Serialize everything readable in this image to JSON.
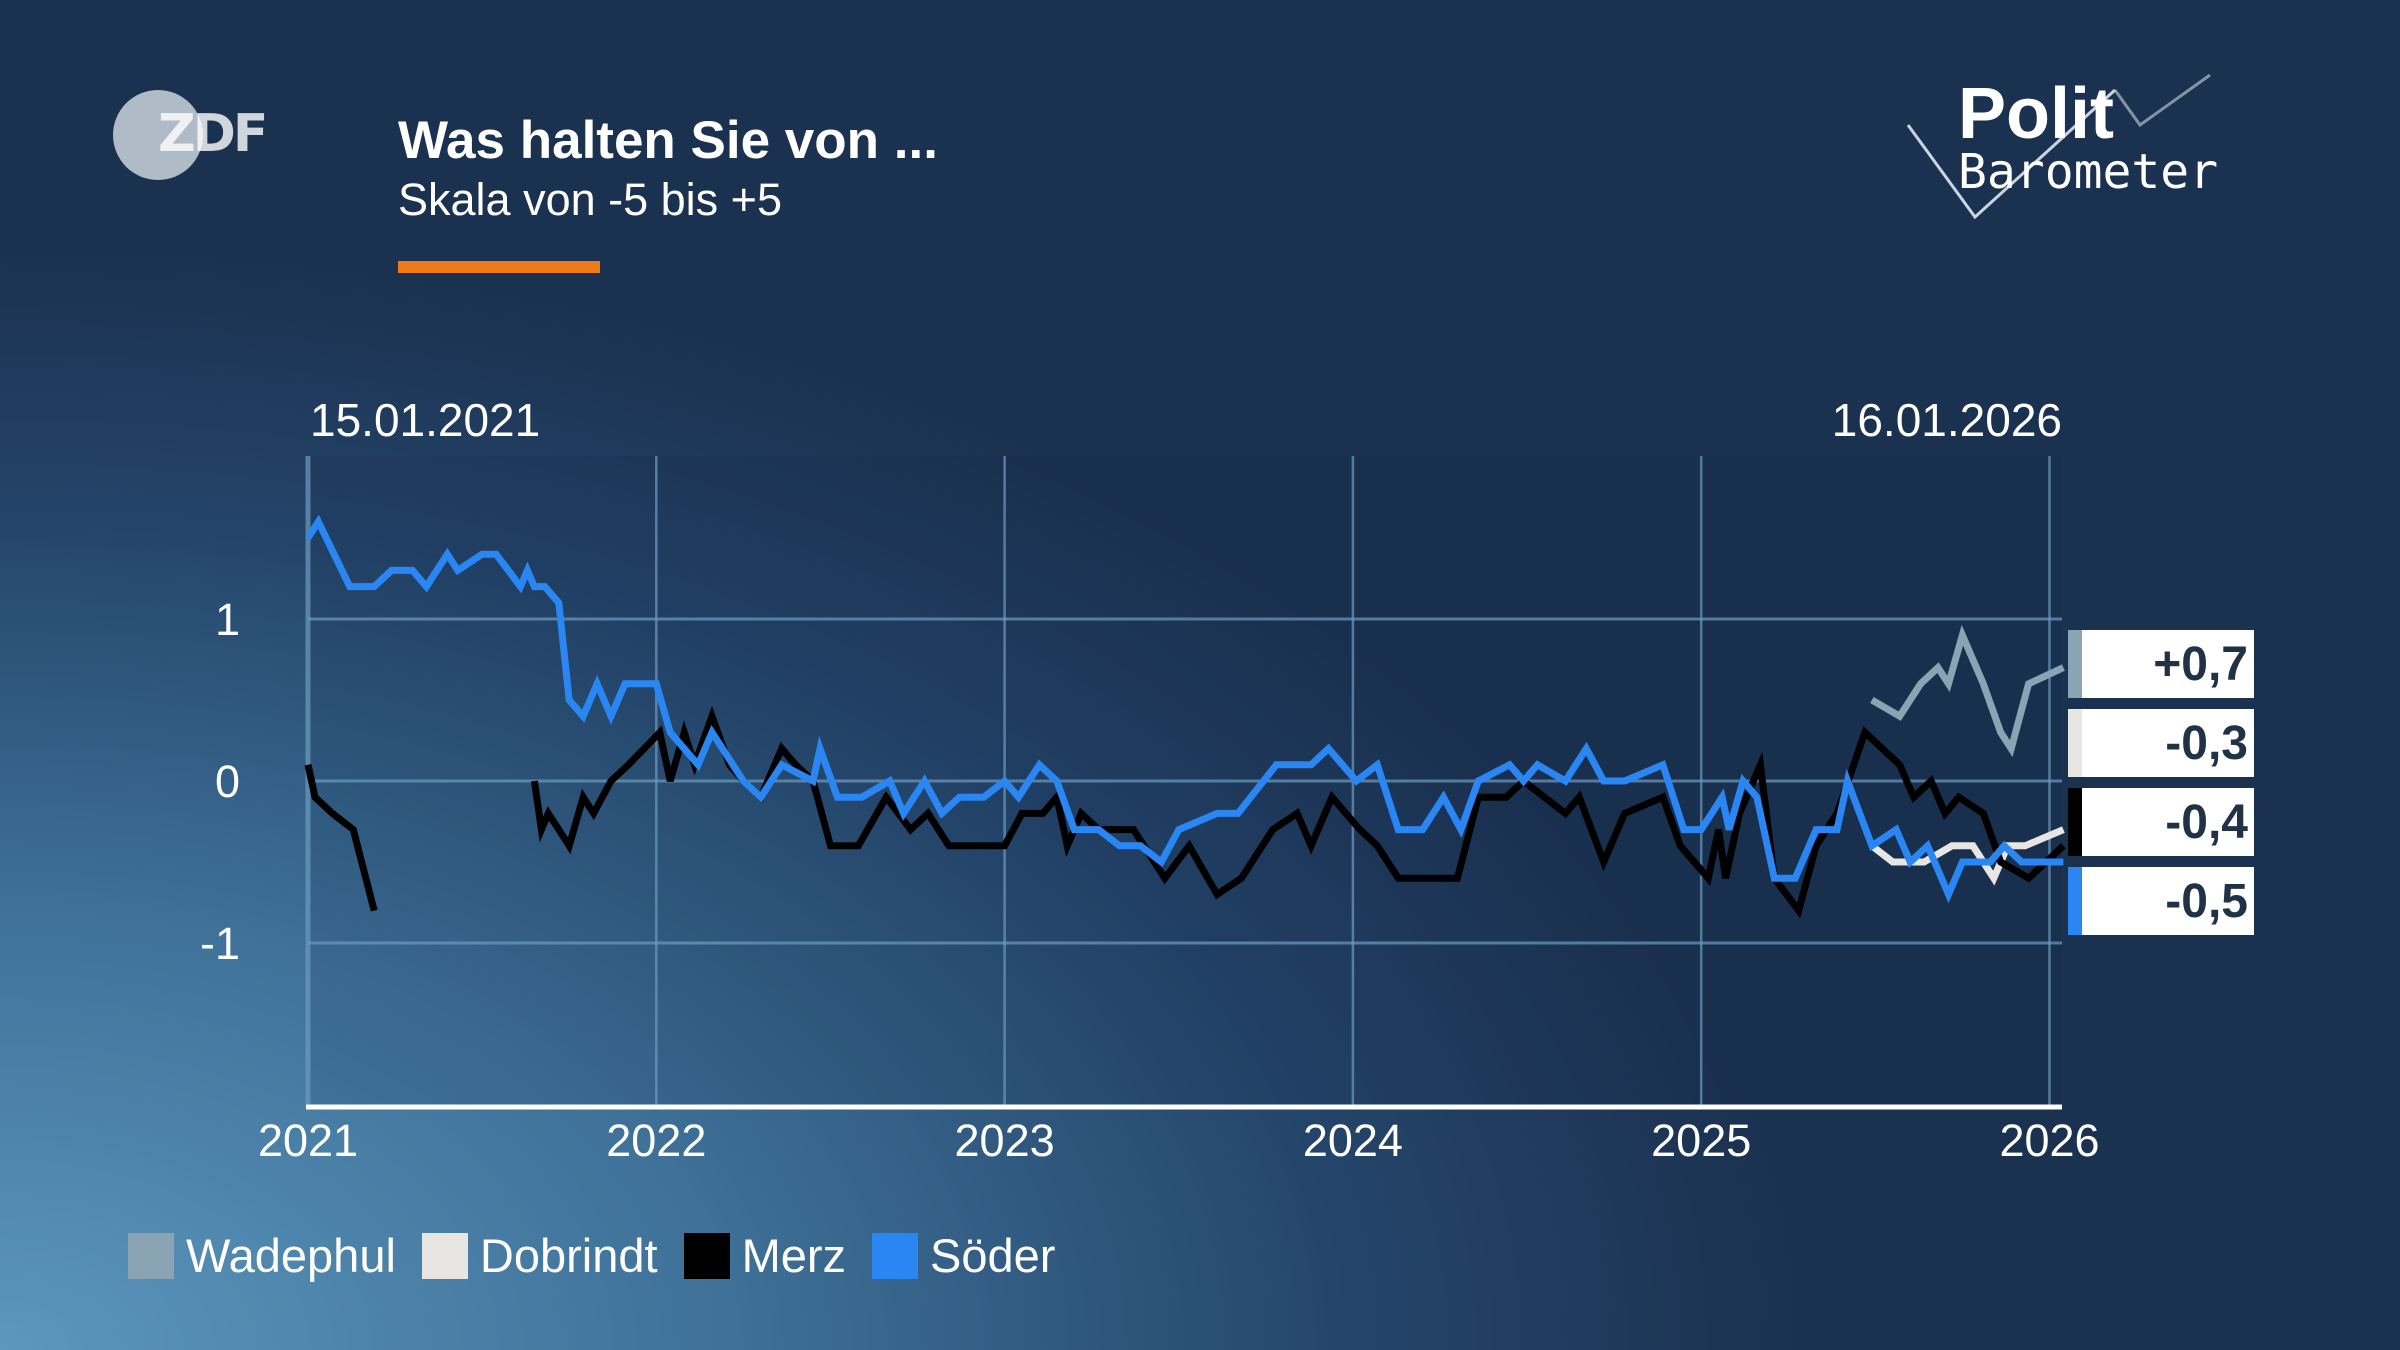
{
  "header": {
    "brand": "ZDF",
    "title": "Was halten Sie von ...",
    "subtitle": "Skala von -5 bis +5",
    "accent_color": "#f07a18",
    "program_logo": "Polit Barometer"
  },
  "chart_data": {
    "type": "line",
    "title": "Was halten Sie von ...",
    "subtitle": "Skala von -5 bis +5",
    "date_start": "15.01.2021",
    "date_end": "16.01.2026",
    "x_ticks": [
      "2021",
      "2022",
      "2023",
      "2024",
      "2025",
      "2026"
    ],
    "y_ticks": [
      "1",
      "0",
      "-1"
    ],
    "xlim": [
      2021,
      2026.04
    ],
    "ylim": [
      -2,
      1.9
    ],
    "grid": true,
    "legend": "bottom-left",
    "series": [
      {
        "name": "Wadephul",
        "color": "#8aa4b4",
        "latest": "+0,7",
        "points": [
          [
            2025.49,
            0.5
          ],
          [
            2025.57,
            0.4
          ],
          [
            2025.63,
            0.6
          ],
          [
            2025.68,
            0.7
          ],
          [
            2025.71,
            0.6
          ],
          [
            2025.75,
            0.9
          ],
          [
            2025.81,
            0.6
          ],
          [
            2025.86,
            0.3
          ],
          [
            2025.89,
            0.2
          ],
          [
            2025.94,
            0.6
          ],
          [
            2026.04,
            0.7
          ]
        ]
      },
      {
        "name": "Dobrindt",
        "color": "#e8e6e3",
        "latest": "-0,3",
        "points": [
          [
            2025.49,
            -0.4
          ],
          [
            2025.55,
            -0.5
          ],
          [
            2025.64,
            -0.5
          ],
          [
            2025.72,
            -0.4
          ],
          [
            2025.78,
            -0.4
          ],
          [
            2025.84,
            -0.6
          ],
          [
            2025.88,
            -0.4
          ],
          [
            2025.93,
            -0.4
          ],
          [
            2026.04,
            -0.3
          ]
        ]
      },
      {
        "name": "Merz",
        "color": "#000000",
        "latest": "-0,4",
        "points": [
          [
            2021.0,
            0.1
          ],
          [
            2021.02,
            -0.1
          ],
          [
            2021.07,
            -0.2
          ],
          [
            2021.13,
            -0.3
          ],
          [
            2021.19,
            -0.8
          ],
          null,
          [
            2021.65,
            0.0
          ],
          [
            2021.67,
            -0.3
          ],
          [
            2021.69,
            -0.2
          ],
          [
            2021.72,
            -0.3
          ],
          [
            2021.75,
            -0.4
          ],
          [
            2021.79,
            -0.1
          ],
          [
            2021.82,
            -0.2
          ],
          [
            2021.87,
            0.0
          ],
          [
            2021.92,
            0.1
          ],
          [
            2022.01,
            0.3
          ],
          [
            2022.04,
            0.0
          ],
          [
            2022.08,
            0.3
          ],
          [
            2022.11,
            0.1
          ],
          [
            2022.16,
            0.4
          ],
          [
            2022.21,
            0.1
          ],
          [
            2022.25,
            0.0
          ],
          [
            2022.3,
            -0.1
          ],
          [
            2022.36,
            0.2
          ],
          [
            2022.4,
            0.1
          ],
          [
            2022.45,
            0.0
          ],
          [
            2022.5,
            -0.4
          ],
          [
            2022.58,
            -0.4
          ],
          [
            2022.66,
            -0.1
          ],
          [
            2022.73,
            -0.3
          ],
          [
            2022.78,
            -0.2
          ],
          [
            2022.84,
            -0.4
          ],
          [
            2023.0,
            -0.4
          ],
          [
            2023.05,
            -0.2
          ],
          [
            2023.11,
            -0.2
          ],
          [
            2023.15,
            -0.1
          ],
          [
            2023.18,
            -0.4
          ],
          [
            2023.22,
            -0.2
          ],
          [
            2023.27,
            -0.3
          ],
          [
            2023.37,
            -0.3
          ],
          [
            2023.46,
            -0.6
          ],
          [
            2023.53,
            -0.4
          ],
          [
            2023.61,
            -0.7
          ],
          [
            2023.68,
            -0.6
          ],
          [
            2023.77,
            -0.3
          ],
          [
            2023.84,
            -0.2
          ],
          [
            2023.88,
            -0.4
          ],
          [
            2023.94,
            -0.1
          ],
          [
            2024.02,
            -0.3
          ],
          [
            2024.07,
            -0.4
          ],
          [
            2024.13,
            -0.6
          ],
          [
            2024.3,
            -0.6
          ],
          [
            2024.36,
            -0.1
          ],
          [
            2024.44,
            -0.1
          ],
          [
            2024.49,
            0.0
          ],
          [
            2024.61,
            -0.2
          ],
          [
            2024.65,
            -0.1
          ],
          [
            2024.72,
            -0.5
          ],
          [
            2024.78,
            -0.2
          ],
          [
            2024.89,
            -0.1
          ],
          [
            2024.94,
            -0.4
          ],
          [
            2025.02,
            -0.6
          ],
          [
            2025.05,
            -0.3
          ],
          [
            2025.07,
            -0.6
          ],
          [
            2025.11,
            -0.2
          ],
          [
            2025.17,
            0.1
          ],
          [
            2025.21,
            -0.6
          ],
          [
            2025.28,
            -0.8
          ],
          [
            2025.33,
            -0.4
          ],
          [
            2025.39,
            -0.2
          ],
          [
            2025.47,
            0.3
          ],
          [
            2025.57,
            0.1
          ],
          [
            2025.61,
            -0.1
          ],
          [
            2025.66,
            0.0
          ],
          [
            2025.7,
            -0.2
          ],
          [
            2025.74,
            -0.1
          ],
          [
            2025.81,
            -0.2
          ],
          [
            2025.86,
            -0.5
          ],
          [
            2025.94,
            -0.6
          ],
          [
            2026.04,
            -0.4
          ]
        ]
      },
      {
        "name": "Söder",
        "color": "#2a86f2",
        "latest": "-0,5",
        "points": [
          [
            2021.0,
            1.5
          ],
          [
            2021.03,
            1.6
          ],
          [
            2021.12,
            1.2
          ],
          [
            2021.19,
            1.2
          ],
          [
            2021.24,
            1.3
          ],
          [
            2021.3,
            1.3
          ],
          [
            2021.34,
            1.2
          ],
          [
            2021.4,
            1.4
          ],
          [
            2021.43,
            1.3
          ],
          [
            2021.5,
            1.4
          ],
          [
            2021.54,
            1.4
          ],
          [
            2021.61,
            1.2
          ],
          [
            2021.63,
            1.3
          ],
          [
            2021.65,
            1.2
          ],
          [
            2021.68,
            1.2
          ],
          [
            2021.72,
            1.1
          ],
          [
            2021.75,
            0.5
          ],
          [
            2021.79,
            0.4
          ],
          [
            2021.83,
            0.6
          ],
          [
            2021.87,
            0.4
          ],
          [
            2021.91,
            0.6
          ],
          [
            2022.0,
            0.6
          ],
          [
            2022.04,
            0.3
          ],
          [
            2022.12,
            0.1
          ],
          [
            2022.16,
            0.3
          ],
          [
            2022.25,
            0.0
          ],
          [
            2022.3,
            -0.1
          ],
          [
            2022.36,
            0.1
          ],
          [
            2022.45,
            0.0
          ],
          [
            2022.47,
            0.2
          ],
          [
            2022.52,
            -0.1
          ],
          [
            2022.59,
            -0.1
          ],
          [
            2022.67,
            0.0
          ],
          [
            2022.71,
            -0.2
          ],
          [
            2022.77,
            0.0
          ],
          [
            2022.82,
            -0.2
          ],
          [
            2022.87,
            -0.1
          ],
          [
            2022.94,
            -0.1
          ],
          [
            2023.0,
            0.0
          ],
          [
            2023.04,
            -0.1
          ],
          [
            2023.1,
            0.1
          ],
          [
            2023.15,
            0.0
          ],
          [
            2023.2,
            -0.3
          ],
          [
            2023.27,
            -0.3
          ],
          [
            2023.33,
            -0.4
          ],
          [
            2023.39,
            -0.4
          ],
          [
            2023.45,
            -0.5
          ],
          [
            2023.5,
            -0.3
          ],
          [
            2023.61,
            -0.2
          ],
          [
            2023.67,
            -0.2
          ],
          [
            2023.78,
            0.1
          ],
          [
            2023.88,
            0.1
          ],
          [
            2023.93,
            0.2
          ],
          [
            2024.01,
            0.0
          ],
          [
            2024.07,
            0.1
          ],
          [
            2024.13,
            -0.3
          ],
          [
            2024.2,
            -0.3
          ],
          [
            2024.26,
            -0.1
          ],
          [
            2024.31,
            -0.3
          ],
          [
            2024.36,
            0.0
          ],
          [
            2024.45,
            0.1
          ],
          [
            2024.49,
            0.0
          ],
          [
            2024.53,
            0.1
          ],
          [
            2024.61,
            0.0
          ],
          [
            2024.67,
            0.2
          ],
          [
            2024.72,
            0.0
          ],
          [
            2024.78,
            0.0
          ],
          [
            2024.89,
            0.1
          ],
          [
            2024.95,
            -0.3
          ],
          [
            2025.0,
            -0.3
          ],
          [
            2025.06,
            -0.1
          ],
          [
            2025.08,
            -0.3
          ],
          [
            2025.12,
            0.0
          ],
          [
            2025.16,
            -0.1
          ],
          [
            2025.21,
            -0.6
          ],
          [
            2025.27,
            -0.6
          ],
          [
            2025.33,
            -0.3
          ],
          [
            2025.39,
            -0.3
          ],
          [
            2025.42,
            0.0
          ],
          [
            2025.49,
            -0.4
          ],
          [
            2025.56,
            -0.3
          ],
          [
            2025.6,
            -0.5
          ],
          [
            2025.65,
            -0.4
          ],
          [
            2025.71,
            -0.7
          ],
          [
            2025.75,
            -0.5
          ],
          [
            2025.83,
            -0.5
          ],
          [
            2025.87,
            -0.4
          ],
          [
            2025.92,
            -0.5
          ],
          [
            2026.04,
            -0.5
          ]
        ]
      }
    ]
  }
}
